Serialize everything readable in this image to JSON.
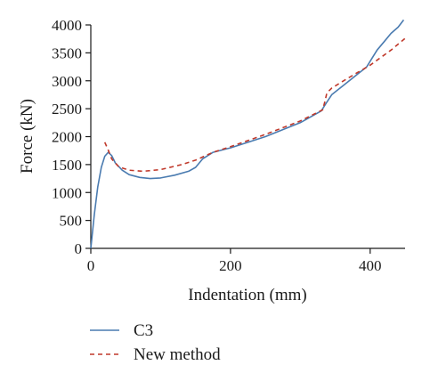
{
  "chart_data": {
    "type": "line",
    "xlabel": "Indentation (mm)",
    "ylabel": "Force (kN)",
    "xlim": [
      0,
      450
    ],
    "ylim": [
      0,
      4000
    ],
    "x_ticks": [
      0,
      200,
      400
    ],
    "y_ticks": [
      0,
      500,
      1000,
      1500,
      2000,
      2500,
      3000,
      3500,
      4000
    ],
    "grid": false,
    "legend_position": "bottom-left",
    "series": [
      {
        "name": "C3",
        "color": "#4a7bb0",
        "style": "solid",
        "points": [
          [
            0,
            0
          ],
          [
            5,
            600
          ],
          [
            10,
            1100
          ],
          [
            15,
            1450
          ],
          [
            20,
            1650
          ],
          [
            25,
            1720
          ],
          [
            30,
            1660
          ],
          [
            35,
            1530
          ],
          [
            45,
            1400
          ],
          [
            55,
            1320
          ],
          [
            70,
            1270
          ],
          [
            85,
            1250
          ],
          [
            100,
            1260
          ],
          [
            120,
            1310
          ],
          [
            140,
            1380
          ],
          [
            150,
            1450
          ],
          [
            160,
            1600
          ],
          [
            175,
            1720
          ],
          [
            200,
            1800
          ],
          [
            250,
            2000
          ],
          [
            300,
            2250
          ],
          [
            330,
            2460
          ],
          [
            337,
            2600
          ],
          [
            345,
            2750
          ],
          [
            360,
            2900
          ],
          [
            380,
            3100
          ],
          [
            395,
            3250
          ],
          [
            410,
            3550
          ],
          [
            420,
            3700
          ],
          [
            430,
            3850
          ],
          [
            440,
            3960
          ],
          [
            448,
            4090
          ]
        ]
      },
      {
        "name": "New method",
        "color": "#c0392b",
        "style": "dashed",
        "points": [
          [
            20,
            1900
          ],
          [
            25,
            1760
          ],
          [
            30,
            1600
          ],
          [
            40,
            1460
          ],
          [
            55,
            1400
          ],
          [
            75,
            1380
          ],
          [
            100,
            1410
          ],
          [
            130,
            1500
          ],
          [
            150,
            1580
          ],
          [
            175,
            1720
          ],
          [
            200,
            1820
          ],
          [
            250,
            2040
          ],
          [
            300,
            2280
          ],
          [
            332,
            2480
          ],
          [
            335,
            2620
          ],
          [
            338,
            2780
          ],
          [
            345,
            2870
          ],
          [
            370,
            3060
          ],
          [
            400,
            3280
          ],
          [
            430,
            3550
          ],
          [
            450,
            3760
          ]
        ]
      }
    ]
  }
}
